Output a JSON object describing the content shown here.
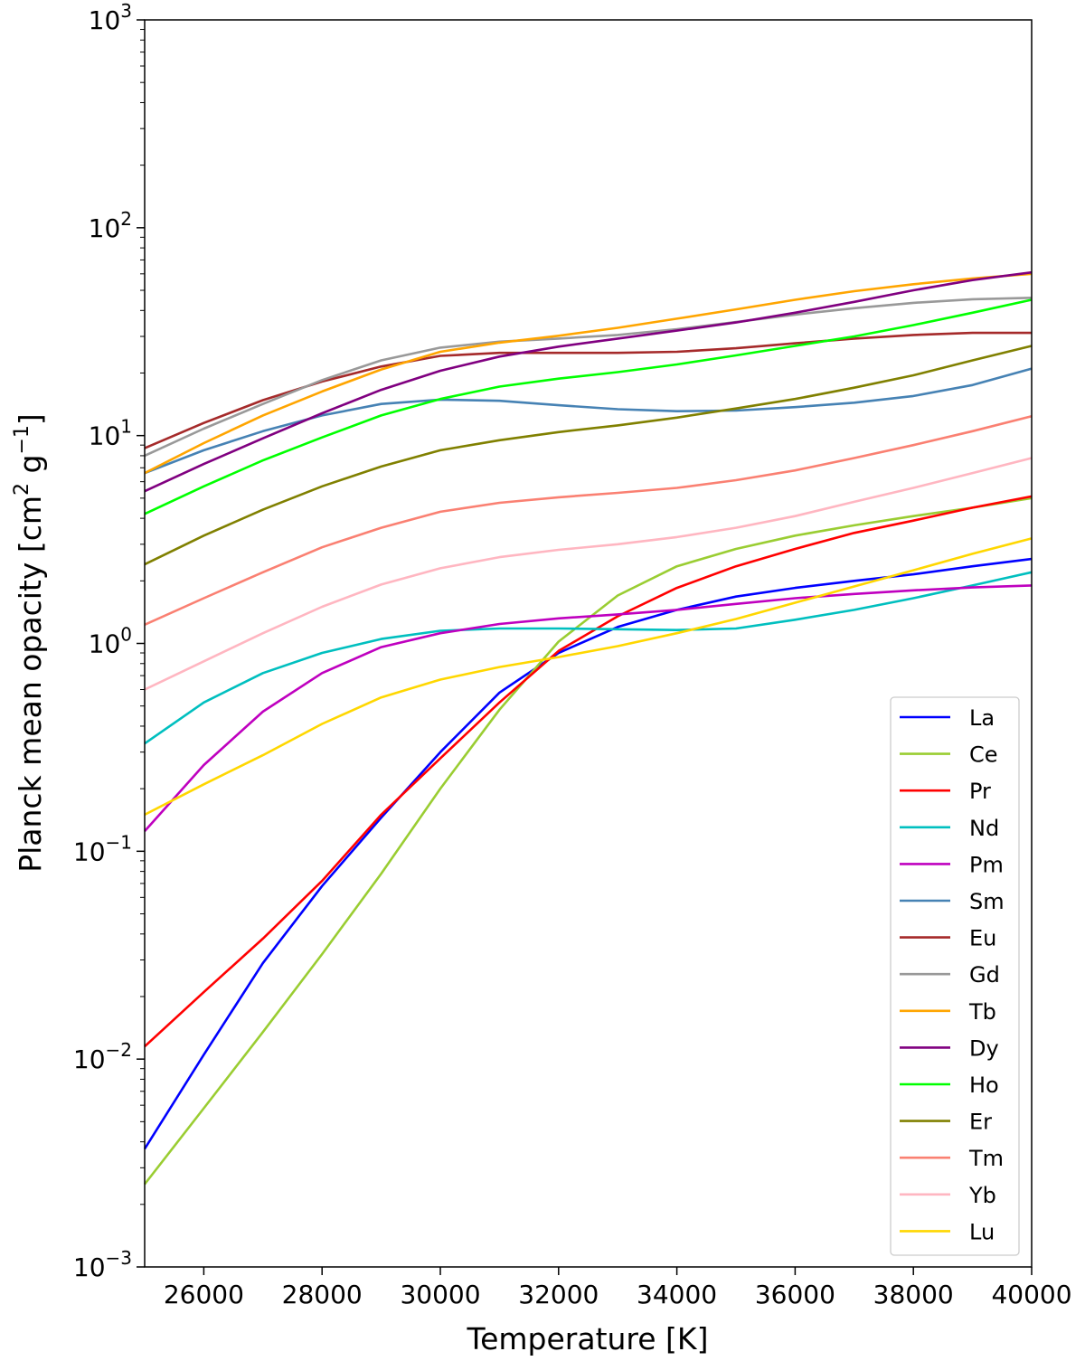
{
  "chart_data": {
    "type": "line",
    "xlabel": "Temperature [K]",
    "ylabel": "Planck mean opacity [cm² g⁻¹]",
    "ylabel_parts": {
      "main": "Planck mean opacity [cm",
      "exp1": "2",
      "mid": " g",
      "exp2": "−1",
      "end": "]"
    },
    "xlim": [
      25000,
      40000
    ],
    "ylim": [
      0.001,
      1000
    ],
    "yscale": "log",
    "grid": false,
    "legend_position": "lower right",
    "x_ticks": [
      26000,
      28000,
      30000,
      32000,
      34000,
      36000,
      38000,
      40000
    ],
    "x_tick_labels": [
      "26000",
      "28000",
      "30000",
      "32000",
      "34000",
      "36000",
      "38000",
      "40000"
    ],
    "y_ticks": [
      {
        "value": 1000,
        "base": "10",
        "exp": "3"
      },
      {
        "value": 100,
        "base": "10",
        "exp": "2"
      },
      {
        "value": 10,
        "base": "10",
        "exp": "1"
      },
      {
        "value": 1,
        "base": "10",
        "exp": "0"
      },
      {
        "value": 0.1,
        "base": "10",
        "exp": "−1"
      },
      {
        "value": 0.01,
        "base": "10",
        "exp": "−2"
      },
      {
        "value": 0.001,
        "base": "10",
        "exp": "−3"
      }
    ],
    "x": [
      25000,
      26000,
      27000,
      28000,
      29000,
      30000,
      31000,
      32000,
      33000,
      34000,
      35000,
      36000,
      37000,
      38000,
      39000,
      40000
    ],
    "series": [
      {
        "name": "La",
        "color": "#0000ff",
        "values": [
          0.0037,
          0.0105,
          0.029,
          0.068,
          0.145,
          0.3,
          0.58,
          0.9,
          1.2,
          1.45,
          1.68,
          1.85,
          2.0,
          2.15,
          2.35,
          2.55
        ]
      },
      {
        "name": "Ce",
        "color": "#9acd32",
        "values": [
          0.0025,
          0.0058,
          0.0135,
          0.032,
          0.078,
          0.2,
          0.48,
          1.02,
          1.7,
          2.35,
          2.85,
          3.3,
          3.7,
          4.1,
          4.5,
          5.0
        ]
      },
      {
        "name": "Pr",
        "color": "#ff0000",
        "values": [
          0.0115,
          0.021,
          0.038,
          0.072,
          0.15,
          0.28,
          0.52,
          0.92,
          1.35,
          1.85,
          2.35,
          2.85,
          3.4,
          3.9,
          4.5,
          5.1
        ]
      },
      {
        "name": "Nd",
        "color": "#00bfbf",
        "values": [
          0.33,
          0.52,
          0.72,
          0.9,
          1.05,
          1.15,
          1.18,
          1.18,
          1.17,
          1.16,
          1.18,
          1.3,
          1.45,
          1.65,
          1.9,
          2.2
        ]
      },
      {
        "name": "Pm",
        "color": "#bf00bf",
        "values": [
          0.125,
          0.26,
          0.47,
          0.72,
          0.96,
          1.12,
          1.24,
          1.32,
          1.38,
          1.45,
          1.55,
          1.65,
          1.73,
          1.8,
          1.86,
          1.9
        ]
      },
      {
        "name": "Sm",
        "color": "#4682b4",
        "values": [
          6.6,
          8.5,
          10.5,
          12.5,
          14.2,
          14.9,
          14.7,
          14.0,
          13.4,
          13.1,
          13.2,
          13.7,
          14.4,
          15.5,
          17.5,
          21.0
        ]
      },
      {
        "name": "Eu",
        "color": "#a52a2a",
        "values": [
          8.7,
          11.5,
          14.8,
          18.2,
          21.5,
          24.2,
          25.0,
          25.0,
          25.0,
          25.3,
          26.3,
          27.8,
          29.3,
          30.5,
          31.2,
          31.2
        ]
      },
      {
        "name": "Gd",
        "color": "#999999",
        "values": [
          8.0,
          10.8,
          14.2,
          18.5,
          23.0,
          26.5,
          28.3,
          29.3,
          30.5,
          32.5,
          35.2,
          38.2,
          41.0,
          43.5,
          45.3,
          46.0
        ]
      },
      {
        "name": "Tb",
        "color": "#ffa500",
        "values": [
          6.6,
          9.2,
          12.5,
          16.3,
          20.8,
          25.3,
          28.0,
          30.2,
          33.0,
          36.5,
          40.5,
          45.0,
          49.5,
          53.5,
          57.0,
          60.0
        ]
      },
      {
        "name": "Dy",
        "color": "#800080",
        "values": [
          5.4,
          7.3,
          9.7,
          12.8,
          16.6,
          20.5,
          24.0,
          26.8,
          29.3,
          32.0,
          35.0,
          39.0,
          44.0,
          50.0,
          56.0,
          61.0
        ]
      },
      {
        "name": "Ho",
        "color": "#00ff00",
        "values": [
          4.2,
          5.7,
          7.6,
          9.8,
          12.5,
          15.0,
          17.2,
          18.8,
          20.2,
          22.0,
          24.3,
          27.0,
          30.0,
          34.0,
          39.0,
          45.0
        ]
      },
      {
        "name": "Er",
        "color": "#808000",
        "values": [
          2.4,
          3.3,
          4.4,
          5.7,
          7.1,
          8.5,
          9.5,
          10.4,
          11.2,
          12.2,
          13.5,
          15.0,
          17.0,
          19.5,
          23.0,
          27.0
        ]
      },
      {
        "name": "Tm",
        "color": "#fa8072",
        "values": [
          1.23,
          1.65,
          2.2,
          2.9,
          3.6,
          4.3,
          4.75,
          5.05,
          5.3,
          5.6,
          6.1,
          6.8,
          7.8,
          9.0,
          10.5,
          12.4
        ]
      },
      {
        "name": "Yb",
        "color": "#ffb6c1",
        "values": [
          0.6,
          0.82,
          1.12,
          1.5,
          1.92,
          2.3,
          2.6,
          2.82,
          3.0,
          3.25,
          3.6,
          4.1,
          4.8,
          5.6,
          6.6,
          7.8
        ]
      },
      {
        "name": "Lu",
        "color": "#ffd700",
        "values": [
          0.15,
          0.21,
          0.29,
          0.41,
          0.55,
          0.67,
          0.77,
          0.86,
          0.97,
          1.12,
          1.31,
          1.57,
          1.88,
          2.25,
          2.7,
          3.2
        ]
      }
    ]
  }
}
